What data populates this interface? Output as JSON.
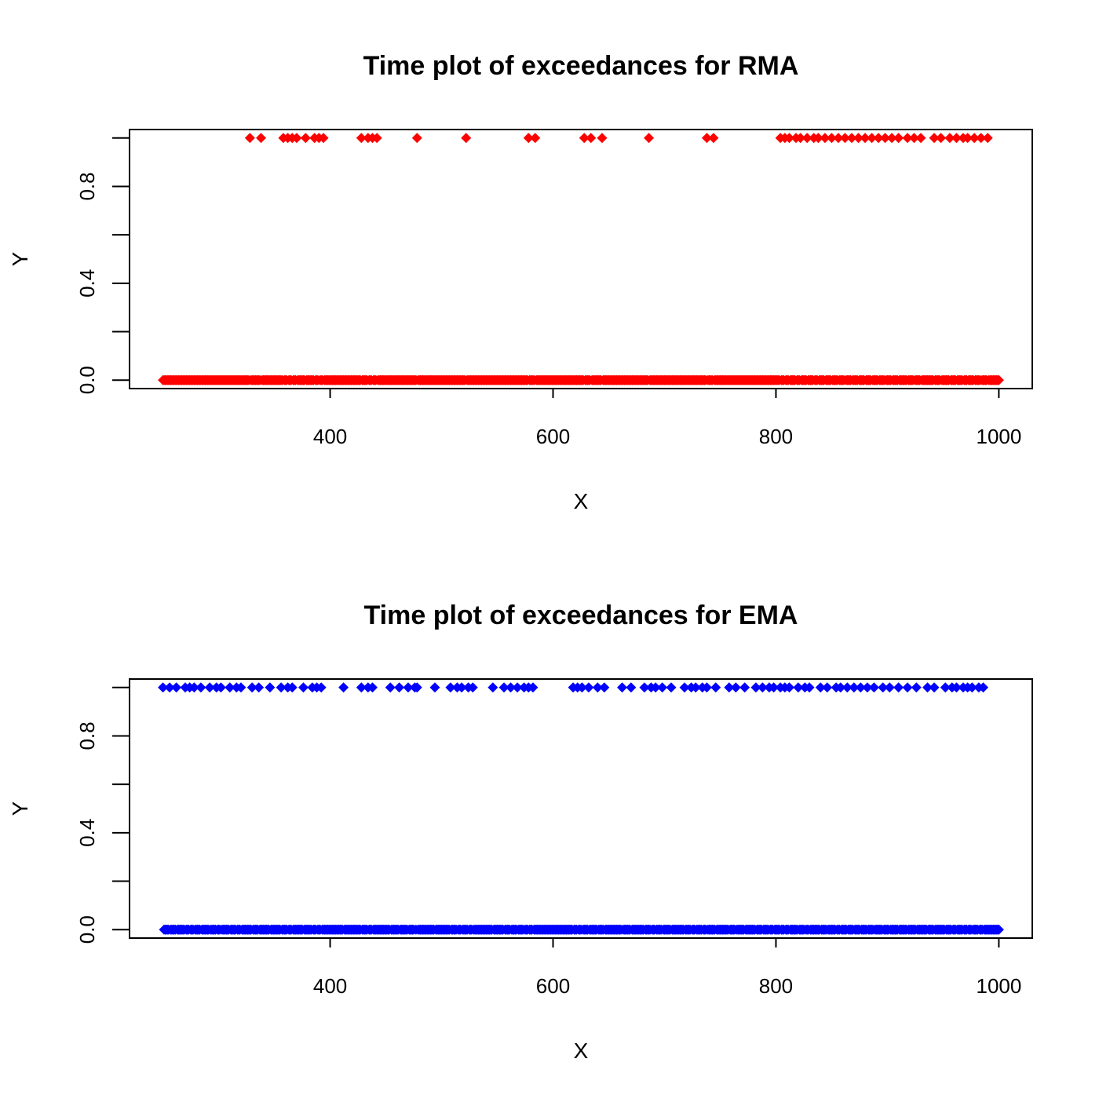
{
  "chart_data": [
    {
      "type": "scatter",
      "title": "Time plot of exceedances for RMA",
      "xlabel": "X",
      "ylabel": "Y",
      "xlim": [
        220,
        1030
      ],
      "ylim": [
        -0.035,
        1.035
      ],
      "x_ticks": [
        400,
        600,
        800,
        1000
      ],
      "x_tick_labels": [
        "400",
        "600",
        "800",
        "1000"
      ],
      "y_ticks": [
        0.0,
        0.2,
        0.4,
        0.6,
        0.8,
        1.0
      ],
      "y_tick_labels": [
        "0.0",
        "",
        "0.4",
        "",
        "0.8",
        ""
      ],
      "grid": false,
      "legend": "none",
      "marker": "diamond",
      "color": "#ff0000",
      "series": [
        {
          "x_at_one": [
            328,
            338,
            358,
            362,
            366,
            370,
            378,
            386,
            390,
            394,
            428,
            434,
            438,
            442,
            478,
            522,
            578,
            584,
            628,
            634,
            644,
            686,
            738,
            744,
            804,
            808,
            812,
            818,
            822,
            828,
            834,
            838,
            844,
            850,
            856,
            862,
            868,
            874,
            880,
            886,
            892,
            898,
            904,
            910,
            918,
            924,
            930,
            942,
            948,
            956,
            962,
            968,
            972,
            978,
            984,
            990
          ],
          "x_zero_range": [
            250,
            1000
          ],
          "x_zero_step": 1,
          "y_values": [
            0,
            1
          ]
        }
      ]
    },
    {
      "type": "scatter",
      "title": "Time plot of exceedances for EMA",
      "xlabel": "X",
      "ylabel": "Y",
      "xlim": [
        220,
        1030
      ],
      "ylim": [
        -0.035,
        1.035
      ],
      "x_ticks": [
        400,
        600,
        800,
        1000
      ],
      "x_tick_labels": [
        "400",
        "600",
        "800",
        "1000"
      ],
      "y_ticks": [
        0.0,
        0.2,
        0.4,
        0.6,
        0.8,
        1.0
      ],
      "y_tick_labels": [
        "0.0",
        "",
        "0.4",
        "",
        "0.8",
        ""
      ],
      "grid": false,
      "legend": "none",
      "marker": "diamond",
      "color": "#0000ff",
      "series": [
        {
          "x_at_one": [
            250,
            256,
            262,
            270,
            274,
            278,
            284,
            292,
            298,
            302,
            310,
            316,
            320,
            330,
            336,
            346,
            356,
            362,
            366,
            376,
            384,
            388,
            392,
            412,
            428,
            434,
            438,
            454,
            462,
            470,
            476,
            478,
            494,
            508,
            514,
            518,
            524,
            528,
            546,
            556,
            562,
            568,
            574,
            578,
            582,
            618,
            622,
            626,
            632,
            640,
            646,
            662,
            670,
            682,
            688,
            692,
            698,
            706,
            718,
            724,
            728,
            734,
            738,
            746,
            758,
            764,
            772,
            782,
            788,
            794,
            798,
            804,
            808,
            812,
            820,
            826,
            830,
            840,
            846,
            854,
            858,
            864,
            870,
            876,
            882,
            888,
            896,
            902,
            910,
            918,
            926,
            936,
            942,
            952,
            958,
            962,
            968,
            972,
            976,
            982,
            986
          ],
          "x_zero_range": [
            250,
            1000
          ],
          "x_zero_step": 1,
          "y_values": [
            0,
            1
          ]
        }
      ]
    }
  ]
}
